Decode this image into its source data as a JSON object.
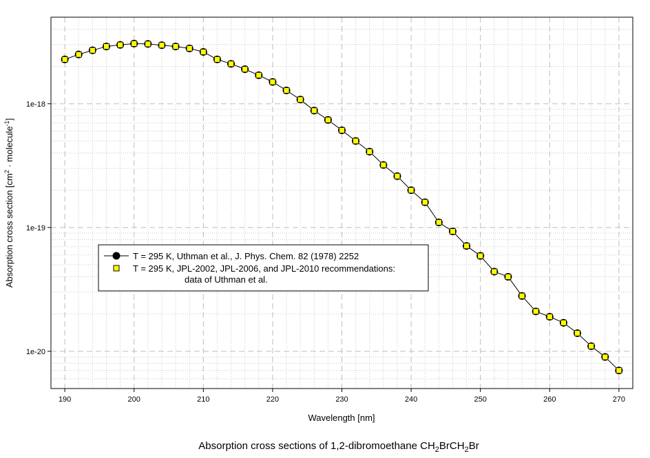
{
  "chart_data": {
    "type": "line",
    "title": "Absorption cross sections of 1,2-dibromoethane CH₂BrCH₂Br",
    "caption": {
      "prefix": "Absorption cross sections of 1,2-dibromoethane CH",
      "sub1": "2",
      "mid1": "BrCH",
      "sub2": "2",
      "suffix": "Br"
    },
    "xlabel": "Wavelength [nm]",
    "ylabel": {
      "prefix": "Absorption cross section [cm",
      "sup1": "2",
      "mid": " · molecule",
      "sup2": "-1",
      "suffix": "]"
    },
    "x_scale": "linear",
    "y_scale": "log",
    "xlim": [
      188,
      272
    ],
    "ylim": [
      5e-21,
      5e-18
    ],
    "x_ticks": [
      190,
      200,
      210,
      220,
      230,
      240,
      250,
      260,
      270
    ],
    "y_ticks": [
      {
        "value": 1e-18,
        "label": "1e-18"
      },
      {
        "value": 1e-19,
        "label": "1e-19"
      },
      {
        "value": 1e-20,
        "label": "1e-20"
      }
    ],
    "grid": true,
    "legend_position": "lower-left",
    "series": [
      {
        "name": "T = 295 K, Uthman et al., J. Phys. Chem. 82 (1978) 2252",
        "marker": "circle",
        "color": "#000000",
        "line": true,
        "x": [
          190,
          192,
          194,
          196,
          198,
          200,
          202,
          204,
          206,
          208,
          210,
          212,
          214,
          216,
          218,
          220,
          222,
          224,
          226,
          228,
          230,
          232,
          234,
          236,
          238,
          240,
          242,
          244,
          246,
          248,
          250,
          252,
          254,
          256,
          258,
          260,
          262,
          264,
          266,
          268,
          270
        ],
        "y": [
          2.28e-18,
          2.5e-18,
          2.7e-18,
          2.9e-18,
          2.99e-18,
          3.06e-18,
          3.04e-18,
          2.97e-18,
          2.9e-18,
          2.8e-18,
          2.62e-18,
          2.28e-18,
          2.1e-18,
          1.9e-18,
          1.7e-18,
          1.5e-18,
          1.28e-18,
          1.08e-18,
          8.8e-19,
          7.4e-19,
          6.1e-19,
          5e-19,
          4.1e-19,
          3.2e-19,
          2.6e-19,
          2e-19,
          1.6e-19,
          1.1e-19,
          9.3e-20,
          7.1e-20,
          5.9e-20,
          4.4e-20,
          4e-20,
          2.8e-20,
          2.1e-20,
          1.9e-20,
          1.7e-20,
          1.4e-20,
          1.1e-20,
          9e-21,
          7e-21
        ]
      },
      {
        "name_line1": "T = 295 K, JPL-2002, JPL-2006, and JPL-2010 recommendations:",
        "name_line2": "data of Uthman et al.",
        "marker": "square",
        "color": "#ffff00",
        "line": false,
        "x": [
          190,
          192,
          194,
          196,
          198,
          200,
          202,
          204,
          206,
          208,
          210,
          212,
          214,
          216,
          218,
          220,
          222,
          224,
          226,
          228,
          230,
          232,
          234,
          236,
          238,
          240,
          242,
          244,
          246,
          248,
          250,
          252,
          254,
          256,
          258,
          260,
          262,
          264,
          266,
          268,
          270
        ],
        "y": [
          2.28e-18,
          2.5e-18,
          2.7e-18,
          2.9e-18,
          2.99e-18,
          3.06e-18,
          3.04e-18,
          2.97e-18,
          2.9e-18,
          2.8e-18,
          2.62e-18,
          2.28e-18,
          2.1e-18,
          1.9e-18,
          1.7e-18,
          1.5e-18,
          1.28e-18,
          1.08e-18,
          8.8e-19,
          7.4e-19,
          6.1e-19,
          5e-19,
          4.1e-19,
          3.2e-19,
          2.6e-19,
          2e-19,
          1.6e-19,
          1.1e-19,
          9.3e-20,
          7.1e-20,
          5.9e-20,
          4.4e-20,
          4e-20,
          2.8e-20,
          2.1e-20,
          1.9e-20,
          1.7e-20,
          1.4e-20,
          1.1e-20,
          9e-21,
          7e-21
        ]
      }
    ]
  }
}
